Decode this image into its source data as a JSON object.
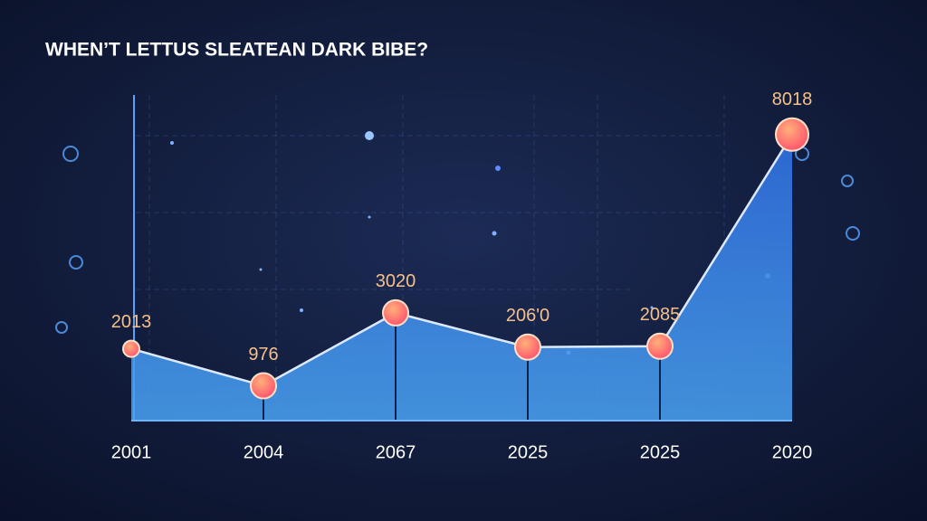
{
  "chart_data": {
    "type": "area",
    "title": "WHEN’T LETTUS SLEATEAN DARK BIBE?",
    "categories": [
      "2001",
      "2004",
      "2067",
      "2025",
      "2025",
      "2020"
    ],
    "values": [
      2013,
      976,
      3020,
      2060,
      2085,
      8018
    ],
    "value_labels": [
      "2013",
      "976",
      "3020",
      "206'0",
      "2085",
      "8018"
    ],
    "ylim": [
      0,
      9000
    ],
    "color": "#3f7fe0",
    "marker_color": "#ff5f6d",
    "label_color": "#f5c08a"
  }
}
